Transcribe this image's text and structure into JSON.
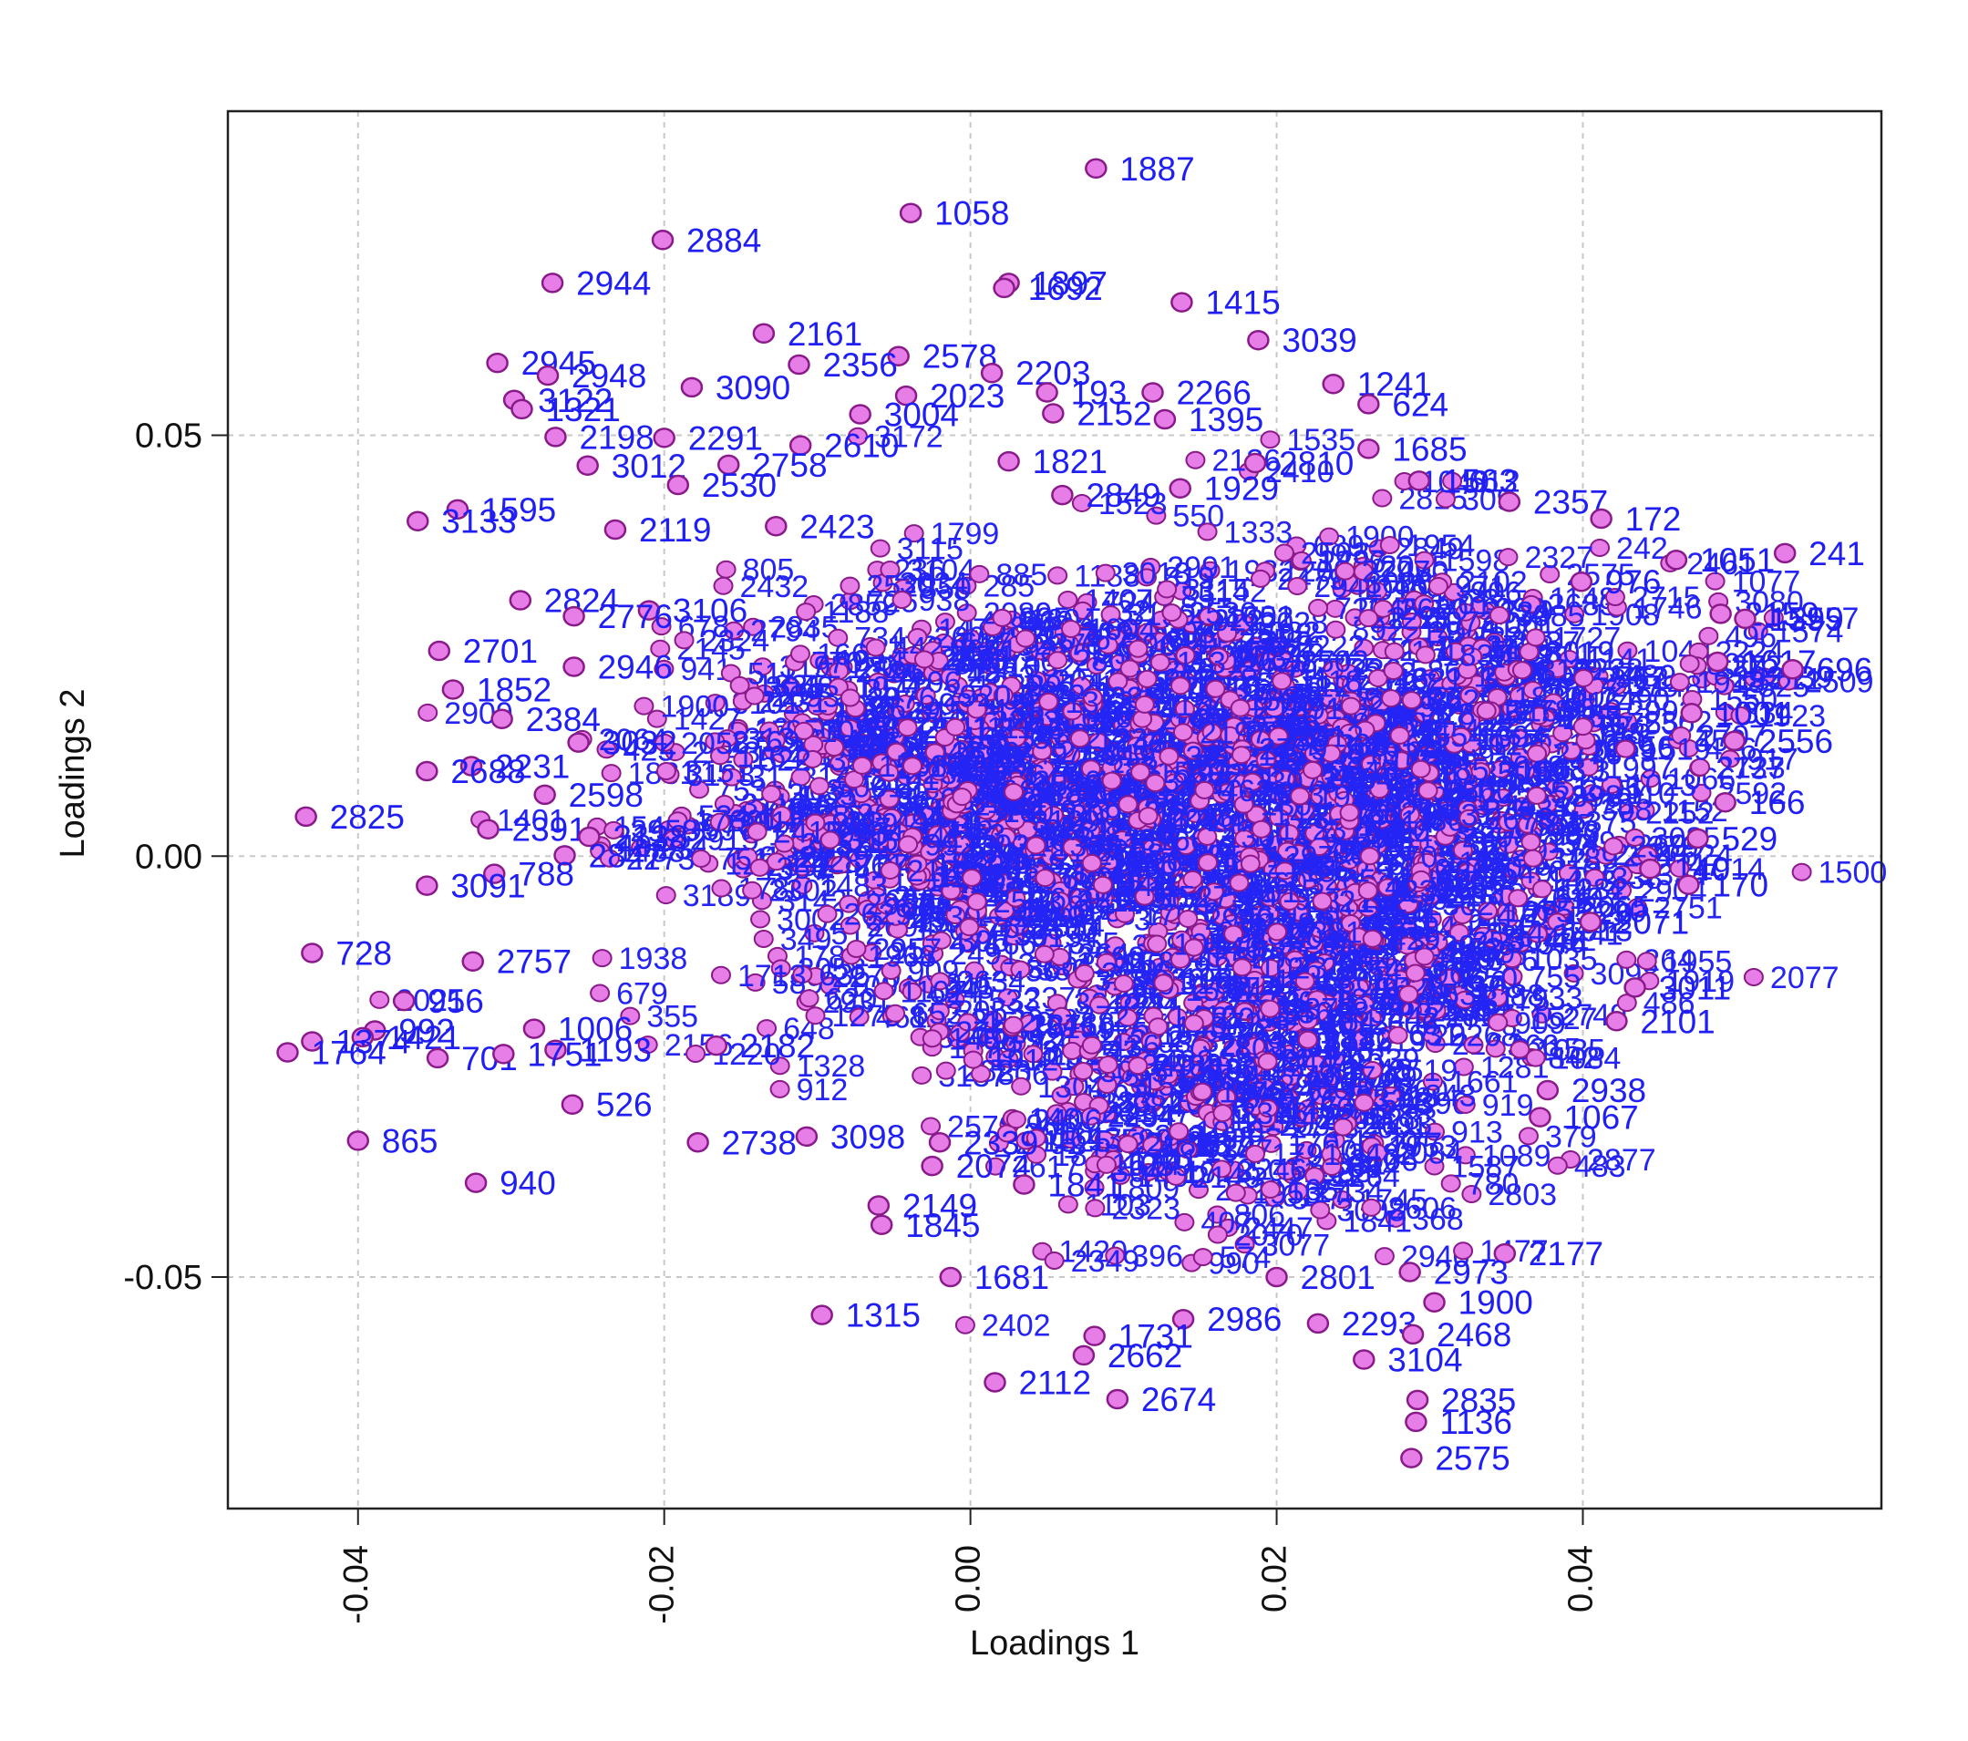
{
  "chart_data": {
    "type": "scatter",
    "title": "",
    "xlabel": "Loadings 1",
    "ylabel": "Loadings 2",
    "xlim": [
      -0.0485,
      0.0595
    ],
    "ylim": [
      -0.0775,
      0.0885
    ],
    "xticks": [
      -0.04,
      -0.02,
      0.0,
      0.02,
      0.04
    ],
    "xtick_labels": [
      "-0.04",
      "-0.02",
      "0.00",
      "0.02",
      "0.04"
    ],
    "yticks": [
      -0.05,
      0.0,
      0.05
    ],
    "ytick_labels": [
      "-0.05",
      "0.00",
      "0.05"
    ],
    "grid": true,
    "marker_fill": "#e77ee7",
    "marker_edge": "#8a1a8a",
    "label_color": "#1f1ff5",
    "points": [
      {
        "x": 0.0082,
        "y": 0.0817,
        "label": "1887"
      },
      {
        "x": -0.0039,
        "y": 0.0764,
        "label": "1058"
      },
      {
        "x": -0.0201,
        "y": 0.0732,
        "label": "2884"
      },
      {
        "x": -0.0273,
        "y": 0.0681,
        "label": "2944"
      },
      {
        "x": 0.0025,
        "y": 0.0681,
        "label": "1897"
      },
      {
        "x": 0.0022,
        "y": 0.0675,
        "label": "1692"
      },
      {
        "x": 0.0138,
        "y": 0.0658,
        "label": "1415"
      },
      {
        "x": -0.0135,
        "y": 0.0621,
        "label": "2161"
      },
      {
        "x": 0.0188,
        "y": 0.0613,
        "label": "3039"
      },
      {
        "x": -0.0309,
        "y": 0.0586,
        "label": "2945"
      },
      {
        "x": -0.0047,
        "y": 0.0594,
        "label": "2578"
      },
      {
        "x": 0.0014,
        "y": 0.0574,
        "label": "2203"
      },
      {
        "x": -0.0112,
        "y": 0.0584,
        "label": "2356"
      },
      {
        "x": -0.0276,
        "y": 0.0571,
        "label": "2948"
      },
      {
        "x": -0.0182,
        "y": 0.0557,
        "label": "3090"
      },
      {
        "x": 0.0237,
        "y": 0.0561,
        "label": "1241"
      },
      {
        "x": 0.0119,
        "y": 0.0551,
        "label": "2266"
      },
      {
        "x": -0.0298,
        "y": 0.0542,
        "label": "3122"
      },
      {
        "x": 0.005,
        "y": 0.0551,
        "label": "193"
      },
      {
        "x": -0.0042,
        "y": 0.0547,
        "label": "2023"
      },
      {
        "x": 0.026,
        "y": 0.0537,
        "label": "624"
      },
      {
        "x": -0.0293,
        "y": 0.0531,
        "label": "1321"
      },
      {
        "x": -0.0072,
        "y": 0.0525,
        "label": "3004"
      },
      {
        "x": 0.0054,
        "y": 0.0526,
        "label": "2152"
      },
      {
        "x": 0.0127,
        "y": 0.0519,
        "label": "1395"
      },
      {
        "x": -0.0271,
        "y": 0.0498,
        "label": "2198"
      },
      {
        "x": -0.02,
        "y": 0.0497,
        "label": "2291"
      },
      {
        "x": -0.0111,
        "y": 0.0488,
        "label": "2610"
      },
      {
        "x": 0.026,
        "y": 0.0484,
        "label": "1685"
      },
      {
        "x": -0.025,
        "y": 0.0464,
        "label": "3012"
      },
      {
        "x": -0.0158,
        "y": 0.0465,
        "label": "2758"
      },
      {
        "x": 0.0186,
        "y": 0.0467,
        "label": "2810"
      },
      {
        "x": 0.0025,
        "y": 0.0469,
        "label": "1821"
      },
      {
        "x": 0.0293,
        "y": 0.0446,
        "label": "1563"
      },
      {
        "x": 0.0137,
        "y": 0.0437,
        "label": "1929"
      },
      {
        "x": -0.0191,
        "y": 0.0441,
        "label": "2530"
      },
      {
        "x": 0.006,
        "y": 0.0429,
        "label": "2849"
      },
      {
        "x": 0.0352,
        "y": 0.0421,
        "label": "2357"
      },
      {
        "x": 0.0412,
        "y": 0.0401,
        "label": "172"
      },
      {
        "x": -0.0335,
        "y": 0.0412,
        "label": "1595"
      },
      {
        "x": -0.0361,
        "y": 0.0398,
        "label": "3133"
      },
      {
        "x": -0.0232,
        "y": 0.0388,
        "label": "2119"
      },
      {
        "x": -0.0127,
        "y": 0.0392,
        "label": "2423"
      },
      {
        "x": 0.0461,
        "y": 0.0352,
        "label": "1051"
      },
      {
        "x": 0.0532,
        "y": 0.036,
        "label": "241"
      },
      {
        "x": 0.0399,
        "y": 0.0326,
        "label": "976"
      },
      {
        "x": -0.0294,
        "y": 0.0304,
        "label": "2824"
      },
      {
        "x": -0.021,
        "y": 0.0292,
        "label": "3106"
      },
      {
        "x": -0.0259,
        "y": 0.0285,
        "label": "2776"
      },
      {
        "x": 0.049,
        "y": 0.0288,
        "label": "2159"
      },
      {
        "x": 0.0506,
        "y": 0.0282,
        "label": "1599"
      },
      {
        "x": 0.0488,
        "y": 0.0231,
        "label": "1617"
      },
      {
        "x": 0.0537,
        "y": 0.0222,
        "label": "696"
      },
      {
        "x": -0.0347,
        "y": 0.0244,
        "label": "2701"
      },
      {
        "x": -0.0259,
        "y": 0.0225,
        "label": "2946"
      },
      {
        "x": -0.0338,
        "y": 0.0198,
        "label": "1852"
      },
      {
        "x": -0.0306,
        "y": 0.0163,
        "label": "2384"
      },
      {
        "x": 0.0471,
        "y": 0.017,
        "label": "1001"
      },
      {
        "x": -0.0256,
        "y": 0.0135,
        "label": "3032"
      },
      {
        "x": 0.0499,
        "y": 0.0137,
        "label": "2556"
      },
      {
        "x": -0.0326,
        "y": 0.0107,
        "label": "2231"
      },
      {
        "x": -0.0355,
        "y": 0.0101,
        "label": "2688"
      },
      {
        "x": -0.0278,
        "y": 0.0073,
        "label": "2598"
      },
      {
        "x": 0.0493,
        "y": 0.0064,
        "label": "166"
      },
      {
        "x": -0.0434,
        "y": 0.0047,
        "label": "2825"
      },
      {
        "x": -0.0315,
        "y": 0.0032,
        "label": "2391"
      },
      {
        "x": -0.0249,
        "y": 0.0023,
        "label": "2138"
      },
      {
        "x": 0.0475,
        "y": 0.0021,
        "label": "529"
      },
      {
        "x": -0.0265,
        "y": 0.0001,
        "label": "2847"
      },
      {
        "x": 0.0444,
        "y": -0.0015,
        "label": "140"
      },
      {
        "x": 0.0469,
        "y": -0.0034,
        "label": "170"
      },
      {
        "x": -0.0311,
        "y": -0.0021,
        "label": "788"
      },
      {
        "x": -0.0355,
        "y": -0.0035,
        "label": "3091"
      },
      {
        "x": 0.0405,
        "y": -0.0078,
        "label": "2071"
      },
      {
        "x": -0.043,
        "y": -0.0115,
        "label": "728"
      },
      {
        "x": -0.0325,
        "y": -0.0125,
        "label": "2757"
      },
      {
        "x": 0.0434,
        "y": -0.0156,
        "label": "3011"
      },
      {
        "x": -0.037,
        "y": -0.0172,
        "label": "956"
      },
      {
        "x": 0.0422,
        "y": -0.0196,
        "label": "2101"
      },
      {
        "x": -0.0389,
        "y": -0.0207,
        "label": "992"
      },
      {
        "x": -0.0397,
        "y": -0.0215,
        "label": "1421"
      },
      {
        "x": -0.0285,
        "y": -0.0205,
        "label": "1006"
      },
      {
        "x": -0.043,
        "y": -0.022,
        "label": "1374"
      },
      {
        "x": -0.0446,
        "y": -0.0233,
        "label": "1764"
      },
      {
        "x": -0.0348,
        "y": -0.024,
        "label": "701"
      },
      {
        "x": -0.0271,
        "y": -0.023,
        "label": "1193"
      },
      {
        "x": -0.0305,
        "y": -0.0235,
        "label": "1751"
      },
      {
        "x": -0.0166,
        "y": -0.0225,
        "label": "2182"
      },
      {
        "x": 0.0377,
        "y": -0.0278,
        "label": "2938"
      },
      {
        "x": -0.026,
        "y": -0.0295,
        "label": "526"
      },
      {
        "x": 0.0372,
        "y": -0.031,
        "label": "1067"
      },
      {
        "x": -0.04,
        "y": -0.0338,
        "label": "865"
      },
      {
        "x": -0.0178,
        "y": -0.034,
        "label": "2738"
      },
      {
        "x": -0.0107,
        "y": -0.0333,
        "label": "3098"
      },
      {
        "x": -0.002,
        "y": -0.034,
        "label": "2339"
      },
      {
        "x": -0.0025,
        "y": -0.0368,
        "label": "2074"
      },
      {
        "x": -0.0323,
        "y": -0.0388,
        "label": "940"
      },
      {
        "x": 0.0035,
        "y": -0.039,
        "label": "1841"
      },
      {
        "x": -0.006,
        "y": -0.0415,
        "label": "2149"
      },
      {
        "x": -0.0058,
        "y": -0.0438,
        "label": "1845"
      },
      {
        "x": 0.0349,
        "y": -0.0472,
        "label": "2177"
      },
      {
        "x": 0.0287,
        "y": -0.0494,
        "label": "2973"
      },
      {
        "x": -0.0013,
        "y": -0.05,
        "label": "1681"
      },
      {
        "x": 0.02,
        "y": -0.05,
        "label": "2801"
      },
      {
        "x": -0.0097,
        "y": -0.0545,
        "label": "1315"
      },
      {
        "x": 0.0303,
        "y": -0.053,
        "label": "1900"
      },
      {
        "x": 0.0139,
        "y": -0.055,
        "label": "2986"
      },
      {
        "x": 0.0227,
        "y": -0.0555,
        "label": "2293"
      },
      {
        "x": 0.0289,
        "y": -0.0568,
        "label": "2468"
      },
      {
        "x": 0.0081,
        "y": -0.057,
        "label": "1731"
      },
      {
        "x": 0.0257,
        "y": -0.0598,
        "label": "3104"
      },
      {
        "x": 0.0074,
        "y": -0.0593,
        "label": "2662"
      },
      {
        "x": 0.0016,
        "y": -0.0625,
        "label": "2112"
      },
      {
        "x": 0.0096,
        "y": -0.0645,
        "label": "2674"
      },
      {
        "x": 0.0292,
        "y": -0.0646,
        "label": "2835"
      },
      {
        "x": 0.0291,
        "y": -0.0672,
        "label": "1136"
      },
      {
        "x": 0.0288,
        "y": -0.0715,
        "label": "2575"
      }
    ]
  }
}
